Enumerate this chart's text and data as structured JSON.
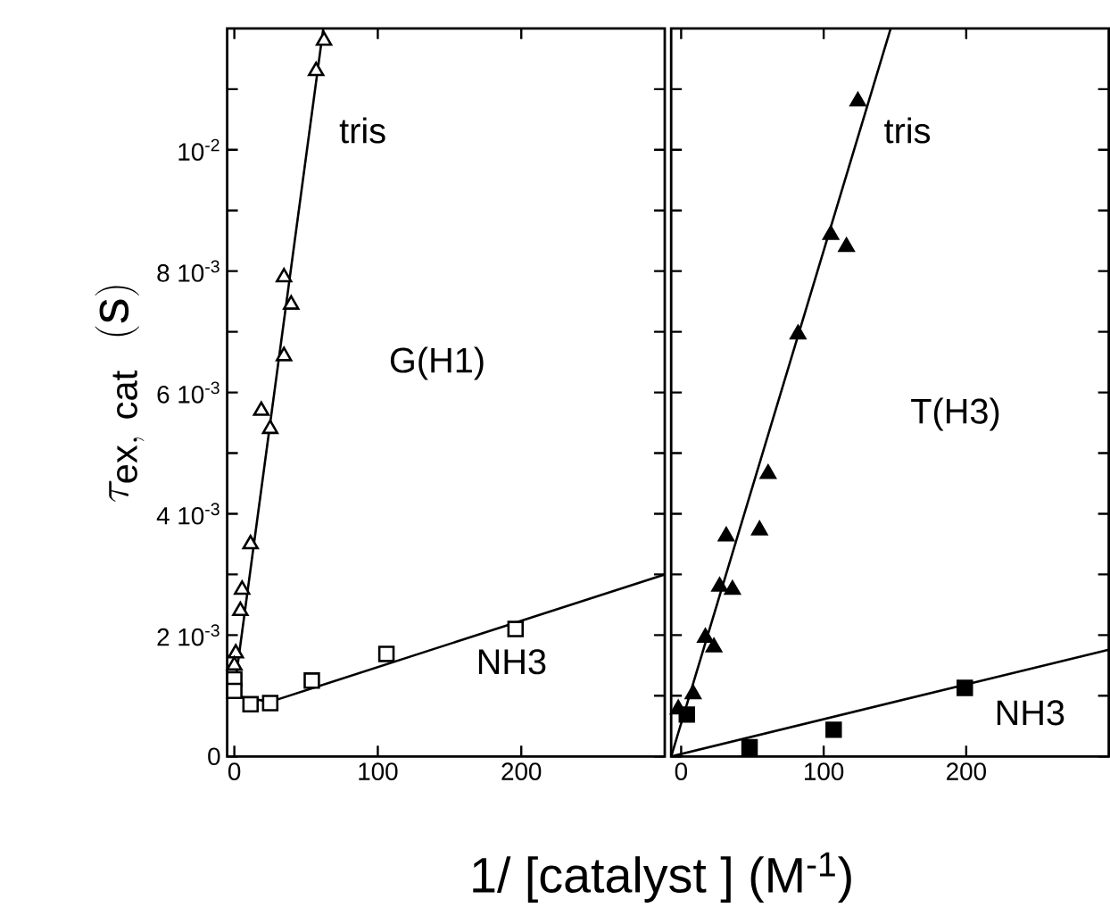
{
  "chart_data": [
    {
      "type": "scatter",
      "title": "G(H1)",
      "ylabel": "\\tau_{\\mathrm{ex,\\ cat}}\\ \\ (\\mathrm{s})",
      "xlabel": "1/ [catalyst ]  (M$^{-1}$)",
      "xlim": [
        -5,
        300
      ],
      "ylim": [
        0,
        0.012
      ],
      "xticks": [
        0,
        100,
        200
      ],
      "yticks": [
        0,
        {
          "value": 0.001,
          "label": null
        },
        {
          "value": 0.002,
          "label": "2 10$^{-3}$"
        },
        {
          "value": 0.003,
          "label": null
        },
        {
          "value": 0.004,
          "label": "4 10$^{-3}$"
        },
        {
          "value": 0.005,
          "label": null
        },
        {
          "value": 0.006,
          "label": "6 10$^{-3}$"
        },
        {
          "value": 0.007,
          "label": null
        },
        {
          "value": 0.008,
          "label": "8 10$^{-3}$"
        },
        {
          "value": 0.009,
          "label": null
        },
        {
          "value": 0.01,
          "label": "10$^{-2}$"
        },
        {
          "value": 0.011,
          "label": null
        }
      ],
      "series": [
        {
          "name": "tris",
          "marker": "triangle",
          "color": "#ffffff",
          "x": [
            62.5,
            57,
            34.6,
            39.6,
            34.6,
            18.8,
            25,
            11.3,
            5.4,
            4.2,
            1,
            0
          ],
          "values": [
            0.0118,
            0.0113,
            0.0079,
            0.00745,
            0.0066,
            0.0057,
            0.0054,
            0.0035,
            0.00275,
            0.0024,
            0.0017,
            0.0015
          ]
        },
        {
          "name": "NH3",
          "marker": "square",
          "color": "#ffffff",
          "x": [
            0,
            0,
            11.3,
            25,
            54,
            106,
            196
          ],
          "values": [
            0.00127,
            0.00108,
            0.00086,
            0.00088,
            0.00125,
            0.00169,
            0.0021
          ]
        },
        {
          "type": "line",
          "color": "#000000",
          "x": [
            0,
            62
          ],
          "values": [
            0.0011,
            0.012
          ]
        },
        {
          "type": "line",
          "color": "#000000",
          "x": [
            0,
            25,
            300
          ],
          "values": [
            0.001,
            0.0009,
            0.003
          ]
        }
      ]
    },
    {
      "type": "scatter",
      "title": "T(H3)",
      "tick_labels": "x",
      "xlim": [
        -7,
        300
      ],
      "ylim": [
        0,
        0.012
      ],
      "xticks": [
        0,
        100,
        200
      ],
      "yticks": [
        0,
        {
          "value": 0.001,
          "label": null
        },
        {
          "value": 0.002,
          "label": null
        },
        {
          "value": 0.003,
          "label": null
        },
        {
          "value": 0.004,
          "label": null
        },
        {
          "value": 0.005,
          "label": null
        },
        {
          "value": 0.006,
          "label": null
        },
        {
          "value": 0.007,
          "label": null
        },
        {
          "value": 0.008,
          "label": null
        },
        {
          "value": 0.009,
          "label": null
        },
        {
          "value": 0.01,
          "label": null
        },
        {
          "value": 0.011,
          "label": null
        }
      ],
      "series": [
        {
          "name": "tris",
          "marker": "triangle",
          "color": "#000000",
          "x": [
            124,
            105,
            116,
            82,
            61,
            31.6,
            55,
            27,
            36,
            17,
            23,
            8.4,
            -2
          ],
          "values": [
            0.0108,
            0.0086,
            0.0084,
            0.00696,
            0.00466,
            0.00363,
            0.00373,
            0.0028,
            0.00275,
            0.00196,
            0.0018,
            0.00103,
            0.00078
          ]
        },
        {
          "name": "NH3",
          "marker": "square",
          "color": "#000000",
          "x": [
            4,
            48,
            107,
            199
          ],
          "values": [
            0.00069,
            0.00015,
            0.00044,
            0.00113
          ]
        },
        {
          "type": "line",
          "color": "#000000",
          "x": [
            -7,
            147
          ],
          "values": [
            0,
            0.012
          ]
        },
        {
          "type": "line",
          "color": "#000000",
          "x": [
            -7,
            300
          ],
          "values": [
            0,
            0.00176
          ]
        }
      ]
    }
  ]
}
